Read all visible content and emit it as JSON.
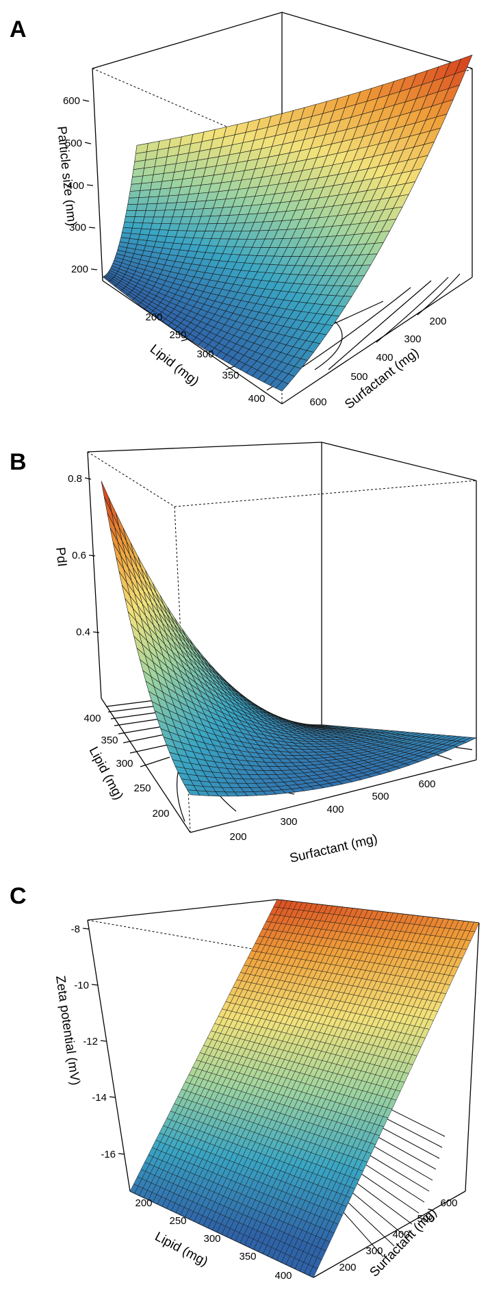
{
  "chart_data": [
    {
      "panel": "A",
      "type": "surface3d",
      "zlabel": "Particle size (nm)",
      "xlabel": "Lipid (mg)",
      "ylabel": "Surfactant (mg)",
      "x_ticks": [
        "200",
        "250",
        "300",
        "350",
        "400"
      ],
      "y_ticks": [
        "200",
        "300",
        "400",
        "500",
        "600"
      ],
      "z_ticks": [
        "200",
        "300",
        "400",
        "500",
        "600"
      ],
      "xlim": [
        180,
        420
      ],
      "ylim": [
        150,
        650
      ],
      "zlim": [
        150,
        680
      ],
      "surface": {
        "description_values": {
          "z_at_x180_y150": 170,
          "z_min": 150,
          "z_at_x420_y650": 670
        }
      },
      "colormap": [
        "#2f63a8",
        "#3aa6c4",
        "#9fd4a0",
        "#f2e27a",
        "#f0a03a",
        "#d7421e"
      ]
    },
    {
      "panel": "B",
      "type": "surface3d",
      "zlabel": "PdI",
      "xlabel": "Lipid (mg)",
      "ylabel": "Surfactant (mg)",
      "x_ticks": [
        "200",
        "250",
        "300",
        "350",
        "400"
      ],
      "y_ticks": [
        "200",
        "300",
        "400",
        "500",
        "600"
      ],
      "z_ticks": [
        "0.4",
        "0.6",
        "0.8"
      ],
      "xlim": [
        180,
        420
      ],
      "ylim": [
        150,
        650
      ],
      "zlim": [
        0.22,
        0.88
      ],
      "surface": {
        "description_values": {
          "z_at_x420_y150": 0.87,
          "z_min": 0.25,
          "z_at_x180_y650": 0.45
        }
      },
      "colormap": [
        "#2f63a8",
        "#3aa6c4",
        "#9fd4a0",
        "#f2e27a",
        "#f0a03a",
        "#d7421e"
      ]
    },
    {
      "panel": "C",
      "type": "surface3d",
      "zlabel": "Zeta potential (mV)",
      "xlabel": "Lipid (mg)",
      "ylabel": "Surfactant (mg)",
      "x_ticks": [
        "200",
        "250",
        "300",
        "350",
        "400"
      ],
      "y_ticks": [
        "200",
        "300",
        "400",
        "500",
        "600"
      ],
      "z_ticks": [
        "-16",
        "-14",
        "-12",
        "-10",
        "-8"
      ],
      "xlim": [
        180,
        420
      ],
      "ylim": [
        150,
        650
      ],
      "zlim": [
        -16.5,
        -7.8
      ],
      "surface": {
        "description_values": {
          "z_at_x180_y150": -16.0,
          "z_at_x420_y150": -17.5,
          "z_at_x180_y650": -8.0
        }
      },
      "colormap": [
        "#2f63a8",
        "#3aa6c4",
        "#9fd4a0",
        "#f2e27a",
        "#f0a03a",
        "#d7421e"
      ]
    }
  ]
}
